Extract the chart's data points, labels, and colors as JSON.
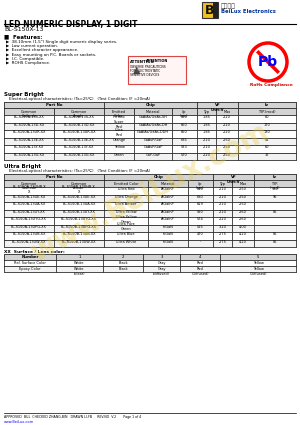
{
  "title_main": "LED NUMERIC DISPLAY, 1 DIGIT",
  "title_sub": "BL-S150X-13",
  "company_chinese": "百貝光电",
  "company_name": "BeiLux Electronics",
  "features": [
    "38.10mm (1.5\") Single digit numeric display series.",
    "Low current operation.",
    "Excellent character appearance.",
    "Easy mounting on P.C. Boards or sockets.",
    "I.C. Compatible.",
    "ROHS Compliance."
  ],
  "super_bright_title": "Super Bright",
  "super_bright_subtitle": "    Electrical-optical characteristics: (Ta=25℃)   (Test Condition: IF =20mA)",
  "ultra_bright_title": "Ultra Bright",
  "ultra_bright_subtitle": "    Electrical-optical characteristics: (Ta=25℃)   (Test Condition: IF =20mA)",
  "super_bright_rows": [
    [
      "BL-S150A-13S-XX",
      "BL-S150B-13S-XX",
      "Hi Red",
      "GaAlAs/GaAs,SH",
      "660",
      "1.85",
      "2.20",
      "60"
    ],
    [
      "BL-S150A-13D-XX",
      "BL-S150B-13D-XX",
      "Super\nRed",
      "GaAlAs/GaAs,DH",
      "660",
      "1.85",
      "2.20",
      "170"
    ],
    [
      "BL-S150A-13UR-XX",
      "BL-S150B-13UR-XX",
      "Ultra\nRed",
      "GaAlAs/GaAs,DDH",
      "660",
      "1.85",
      "2.20",
      "130"
    ],
    [
      "BL-S150A-13E-XX",
      "BL-S150B-13E-XX",
      "Orange",
      "GaAsP/GaP",
      "635",
      "2.10",
      "2.50",
      "52"
    ],
    [
      "BL-S150A-13Y-XX",
      "BL-S150B-13Y-XX",
      "Yellow",
      "GaAsP/GaP",
      "583",
      "2.10",
      "2.50",
      "60"
    ],
    [
      "BL-S150A-13G-XX",
      "BL-S150B-13G-XX",
      "Green",
      "GaP,GaP",
      "570",
      "2.20",
      "2.50",
      "32"
    ]
  ],
  "ultra_bright_rows": [
    [
      "BL-S150A-13UHR-X\nX",
      "BL-S150B-13UHR-X\nX",
      "Ultra Red",
      "AlGaInP",
      "640",
      "2.10",
      "2.50",
      "130"
    ],
    [
      "BL-S150A-13UE-XX",
      "BL-S150B-13UE-XX",
      "Ultra Orange",
      "AlGaInP",
      "630",
      "2.10",
      "2.50",
      "95"
    ],
    [
      "BL-S150A-13UA-XX",
      "BL-S150B-13UA-XX",
      "Ultra Amber",
      "AlGaInP",
      "619",
      "2.10",
      "2.50",
      ""
    ],
    [
      "BL-S150A-13UY-XX",
      "BL-S150B-13UY-XX",
      "Ultra Yellow",
      "AlGaInP",
      "590",
      "2.10",
      "2.60",
      "85"
    ],
    [
      "BL-S150A-13UYG-XX",
      "BL-S150B-13UYG-XX",
      "Ultra Yellow\nGreen",
      "AlGaInP",
      "574",
      "2.20",
      "2.60",
      ""
    ],
    [
      "BL-S150A-13UPG-XX",
      "BL-S150B-13UPG-XX",
      "Ultra Pure\nGreen",
      "InGaN",
      "525",
      "3.20",
      "4.00",
      ""
    ],
    [
      "BL-S150A-13UB-XX",
      "BL-S150B-13UB-XX",
      "Ultra Blue",
      "InGaN",
      "470",
      "2.75",
      "4.20",
      "85"
    ],
    [
      "BL-S150A-13UW-XX",
      "BL-S150B-13UW-XX",
      "Ultra White",
      "InGaN",
      "-",
      "2.75",
      "4.20",
      "85"
    ]
  ],
  "surface_title": "XX  Surface / Lens color:",
  "surface_numbers": [
    "Number",
    "1",
    "2",
    "3",
    "4",
    "5"
  ],
  "surface_row1": [
    "Ref. Surface Color",
    "White",
    "Black",
    "Gray",
    "Red",
    "Yellow"
  ],
  "surface_row2": [
    "Epoxy Color",
    "White\n(clear)",
    "Black",
    "Gray\n(diffused)",
    "Red\n(Diffused)",
    "Yellow\n(Diffused)"
  ],
  "footer_line": "APPROVED  BUL  CHECKED ZHANG,BIN   DRAWN LI,FB     REV.NO  V.2       Page 1 of 4",
  "footer_url": "www.BeiLux.com",
  "hdr_bg": "#d3d3d3",
  "white": "#ffffff",
  "light_gray": "#f2f2f2"
}
